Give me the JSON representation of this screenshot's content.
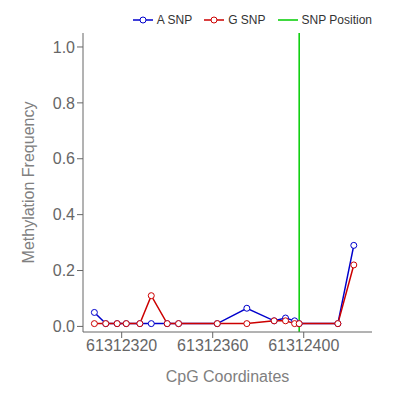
{
  "chart_data": {
    "type": "line",
    "xlabel": "CpG Coordinates",
    "ylabel": "Methylation Frequency",
    "x": [
      61312308,
      61312313,
      61312318,
      61312322,
      61312328,
      61312333,
      61312340,
      61312345,
      61312362,
      61312375,
      61312387,
      61312392,
      61312396,
      61312398,
      61312415,
      61312422
    ],
    "series": [
      {
        "name": "A SNP",
        "color": "#0000cc",
        "marker": "circle",
        "line_style": "solid",
        "values": [
          0.05,
          0.01,
          0.01,
          0.01,
          0.01,
          0.01,
          0.01,
          0.01,
          0.01,
          0.065,
          0.02,
          0.03,
          0.02,
          0.01,
          0.01,
          0.29
        ]
      },
      {
        "name": "G SNP",
        "color": "#cc0000",
        "marker": "circle",
        "line_style": "solid",
        "values": [
          0.01,
          0.01,
          0.01,
          0.01,
          0.01,
          0.11,
          0.01,
          0.01,
          0.01,
          0.01,
          0.02,
          0.02,
          0.01,
          0.01,
          0.01,
          0.22
        ]
      }
    ],
    "vline": {
      "name": "SNP Position",
      "value": 61312398,
      "color": "#00cc00"
    },
    "xlim": [
      61312303,
      61312430
    ],
    "ylim": [
      -0.02,
      1.05
    ],
    "xticks": [
      61312320,
      61312360,
      61312400
    ],
    "yticks": [
      {
        "value": 0.0,
        "label": "0.0"
      },
      0.2,
      0.4,
      0.6,
      0.8,
      {
        "value": 1.0,
        "label": "1.0"
      }
    ],
    "grid": false,
    "legend": "upper right"
  }
}
